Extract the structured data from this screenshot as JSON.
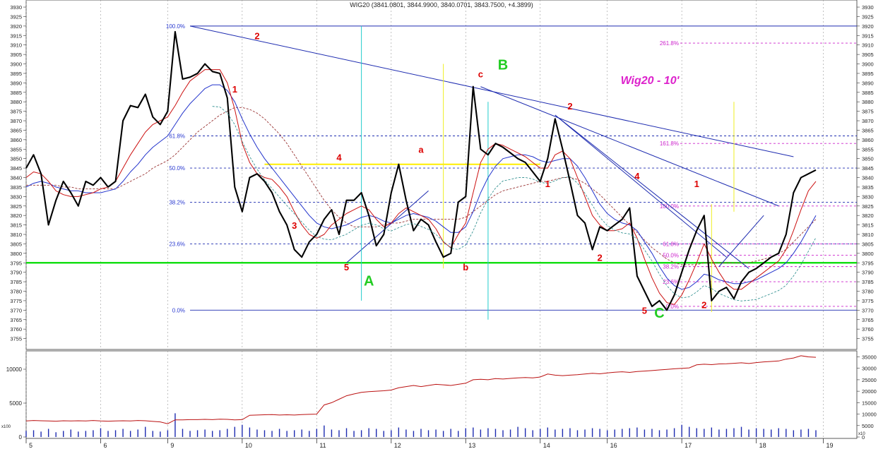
{
  "title": "WIG20 (3841.0801, 3844.9900, 3840.0701, 3843.7500, +4.3899)",
  "annotation_title": "Wig20 - 10'",
  "chart_data": [
    {
      "type": "line",
      "name": "price_panel",
      "title": "WIG20 (3841.0801, 3844.9900, 3840.0701, 3843.7500, +4.3899)",
      "x_tick_labels": [
        "5",
        "6",
        "9",
        "10",
        "11",
        "12",
        "13",
        "14",
        "16",
        "17",
        "18",
        "19"
      ],
      "y_ticks": [
        3755,
        3760,
        3765,
        3770,
        3775,
        3780,
        3785,
        3790,
        3795,
        3800,
        3805,
        3810,
        3815,
        3820,
        3825,
        3830,
        3835,
        3840,
        3845,
        3850,
        3855,
        3860,
        3865,
        3870,
        3875,
        3880,
        3885,
        3890,
        3895,
        3900,
        3905,
        3910,
        3915,
        3920,
        3925,
        3930
      ],
      "ylim": [
        3750,
        3933
      ],
      "x_index": [
        0,
        0.1,
        0.2,
        0.3,
        0.4,
        0.5,
        0.6,
        0.7,
        0.8,
        0.9,
        1,
        1.1,
        1.2,
        1.3,
        1.4,
        1.5,
        1.6,
        1.7,
        1.8,
        1.9,
        2,
        2.1,
        2.2,
        2.3,
        2.4,
        2.5,
        2.6,
        2.7,
        2.8,
        2.9,
        3,
        3.1,
        3.2,
        3.3,
        3.4,
        3.5,
        3.6,
        3.7,
        3.8,
        3.9,
        4,
        4.1,
        4.2,
        4.3,
        4.4,
        4.5,
        4.6,
        4.7,
        4.8,
        4.9,
        5,
        5.1,
        5.2,
        5.3,
        5.4,
        5.5,
        5.6,
        5.7,
        5.8,
        5.9,
        6,
        6.1,
        6.2,
        6.3,
        6.4,
        6.5,
        6.6,
        6.7,
        6.8,
        6.9,
        7,
        7.1,
        7.2,
        7.3,
        7.4,
        7.5,
        7.6,
        7.7,
        7.8,
        7.9,
        8,
        8.1,
        8.2,
        8.3,
        8.4,
        8.5,
        8.6,
        8.7,
        8.8,
        8.9,
        9,
        9.1,
        9.2,
        9.3,
        9.4,
        9.5,
        9.6,
        9.7,
        9.8,
        9.9,
        10,
        10.1,
        10.2,
        10.3,
        10.4,
        10.5,
        10.6,
        10.7,
        10.8
      ],
      "series": [
        {
          "name": "WIG20",
          "values": [
            3845,
            3852,
            3842,
            3815,
            3828,
            3838,
            3832,
            3825,
            3838,
            3836,
            3840,
            3835,
            3838,
            3870,
            3878,
            3877,
            3884,
            3872,
            3868,
            3875,
            3917,
            3892,
            3893,
            3895,
            3900,
            3896,
            3895,
            3882,
            3835,
            3822,
            3840,
            3842,
            3838,
            3832,
            3822,
            3815,
            3802,
            3798,
            3806,
            3810,
            3818,
            3823,
            3810,
            3828,
            3828,
            3832,
            3820,
            3804,
            3810,
            3832,
            3847,
            3828,
            3812,
            3818,
            3815,
            3806,
            3798,
            3800,
            3827,
            3830,
            3888,
            3855,
            3852,
            3858,
            3856,
            3853,
            3850,
            3848,
            3843,
            3838,
            3850,
            3871,
            3855,
            3838,
            3820,
            3816,
            3802,
            3814,
            3812,
            3815,
            3818,
            3824,
            3788,
            3780,
            3772,
            3775,
            3770,
            3778,
            3790,
            3802,
            3812,
            3820,
            3775,
            3780,
            3782,
            3776,
            3785,
            3790,
            3792,
            3795,
            3798,
            3800,
            3810,
            3832,
            3840,
            3842,
            3844
          ]
        },
        {
          "name": "MA short",
          "values": [
            3840,
            3843,
            3842,
            3838,
            3833,
            3831,
            3830,
            3830,
            3831,
            3832,
            3834,
            3835,
            3838,
            3845,
            3852,
            3858,
            3864,
            3868,
            3870,
            3872,
            3878,
            3885,
            3891,
            3894,
            3897,
            3897,
            3897,
            3890,
            3876,
            3858,
            3848,
            3842,
            3840,
            3839,
            3835,
            3830,
            3822,
            3815,
            3810,
            3808,
            3810,
            3815,
            3818,
            3821,
            3823,
            3825,
            3823,
            3818,
            3814,
            3816,
            3821,
            3824,
            3822,
            3820,
            3818,
            3813,
            3806,
            3803,
            3810,
            3816,
            3832,
            3848,
            3855,
            3858,
            3857,
            3855,
            3853,
            3851,
            3848,
            3845,
            3845,
            3852,
            3854,
            3850,
            3840,
            3830,
            3820,
            3815,
            3812,
            3812,
            3813,
            3816,
            3808,
            3797,
            3787,
            3779,
            3774,
            3773,
            3778,
            3786,
            3795,
            3805,
            3797,
            3790,
            3784,
            3781,
            3781,
            3784,
            3787,
            3790,
            3793,
            3796,
            3802,
            3812,
            3823,
            3833,
            3838
          ]
        },
        {
          "name": "MA long",
          "values": [
            3835,
            3837,
            3838,
            3837,
            3835,
            3834,
            3833,
            3833,
            3832,
            3832,
            3832,
            3833,
            3834,
            3838,
            3843,
            3847,
            3852,
            3856,
            3859,
            3862,
            3868,
            3874,
            3879,
            3883,
            3887,
            3889,
            3889,
            3886,
            3880,
            3871,
            3863,
            3856,
            3850,
            3845,
            3840,
            3835,
            3830,
            3825,
            3820,
            3816,
            3814,
            3813,
            3814,
            3815,
            3817,
            3819,
            3820,
            3819,
            3817,
            3816,
            3818,
            3820,
            3821,
            3820,
            3819,
            3817,
            3814,
            3811,
            3811,
            3814,
            3822,
            3832,
            3840,
            3846,
            3850,
            3851,
            3852,
            3852,
            3851,
            3849,
            3848,
            3849,
            3850,
            3850,
            3846,
            3840,
            3833,
            3826,
            3821,
            3818,
            3816,
            3815,
            3812,
            3806,
            3800,
            3793,
            3787,
            3783,
            3781,
            3782,
            3785,
            3789,
            3788,
            3786,
            3785,
            3784,
            3784,
            3785,
            3786,
            3788,
            3790,
            3792,
            3795,
            3800,
            3806,
            3813,
            3820
          ]
        },
        {
          "name": "MA dotted",
          "values": [
            3836,
            3836,
            3836,
            3836,
            3836,
            3835,
            3835,
            3834,
            3834,
            3834,
            3834,
            3834,
            3834,
            3836,
            3838,
            3840,
            3842,
            3845,
            3847,
            3849,
            3852,
            3856,
            3860,
            3864,
            3867,
            3870,
            3873,
            3875,
            3877,
            3877,
            3876,
            3874,
            3871,
            3867,
            3863,
            3858,
            3852,
            3846,
            3840,
            3834,
            3828,
            3823,
            3819,
            3816,
            3814,
            3814,
            3814,
            3814,
            3815,
            3816,
            3816,
            3817,
            3818,
            3818,
            3818,
            3818,
            3818,
            3818,
            3818,
            3819,
            3822,
            3825,
            3828,
            3831,
            3833,
            3834,
            3835,
            3836,
            3837,
            3838,
            3838,
            3839,
            3840,
            3840,
            3839,
            3837,
            3834,
            3831,
            3827,
            3823,
            3819,
            3815,
            3811,
            3807,
            3803,
            3800,
            3797,
            3795,
            3794,
            3794,
            3794,
            3795,
            3795,
            3795,
            3795,
            3795,
            3795,
            3795,
            3796,
            3797,
            3798,
            3800,
            3802,
            3806,
            3810,
            3814,
            3818
          ]
        }
      ],
      "fibonacci_retracement": {
        "levels": [
          {
            "label": "100.0%",
            "value": 3920
          },
          {
            "label": "61.8%",
            "value": 3862
          },
          {
            "label": "50.0%",
            "value": 3845
          },
          {
            "label": "38.2%",
            "value": 3827
          },
          {
            "label": "23.6%",
            "value": 3805
          },
          {
            "label": "0.0%",
            "value": 3770
          }
        ]
      },
      "fibonacci_extension": {
        "levels": [
          {
            "label": "261.8%",
            "value": 3911
          },
          {
            "label": "161.8%",
            "value": 3858
          },
          {
            "label": "100.0%",
            "value": 3825
          },
          {
            "label": "61.8%",
            "value": 3805
          },
          {
            "label": "50.0%",
            "value": 3799
          },
          {
            "label": "38.2%",
            "value": 3793
          },
          {
            "label": "23.6%",
            "value": 3785
          },
          {
            "label": "0.0%",
            "value": 3772
          }
        ]
      },
      "horizontal_levels": [
        {
          "name": "support",
          "value": 3795,
          "color": "#00dd00"
        },
        {
          "name": "yellow",
          "value": 3847,
          "color": "#ffee00"
        }
      ],
      "wave_labels": [
        {
          "text": "1",
          "x": 2.8,
          "y": 3885,
          "color": "#dd0000"
        },
        {
          "text": "2",
          "x": 3.1,
          "y": 3913,
          "color": "#dd0000"
        },
        {
          "text": "3",
          "x": 3.6,
          "y": 3813,
          "color": "#dd0000"
        },
        {
          "text": "4",
          "x": 4.2,
          "y": 3849,
          "color": "#dd0000"
        },
        {
          "text": "5",
          "x": 4.3,
          "y": 3791,
          "color": "#dd0000"
        },
        {
          "text": "A",
          "x": 4.6,
          "y": 3783,
          "color": "#22cc22"
        },
        {
          "text": "a",
          "x": 5.3,
          "y": 3853,
          "color": "#dd0000"
        },
        {
          "text": "b",
          "x": 5.9,
          "y": 3791,
          "color": "#dd0000"
        },
        {
          "text": "c",
          "x": 6.1,
          "y": 3893,
          "color": "#dd0000"
        },
        {
          "text": "B",
          "x": 6.4,
          "y": 3897,
          "color": "#22cc22"
        },
        {
          "text": "1",
          "x": 7.0,
          "y": 3835,
          "color": "#dd0000"
        },
        {
          "text": "2",
          "x": 7.3,
          "y": 3876,
          "color": "#dd0000"
        },
        {
          "text": "2",
          "x": 7.7,
          "y": 3796,
          "color": "#dd0000"
        },
        {
          "text": "4",
          "x": 8.2,
          "y": 3839,
          "color": "#dd0000"
        },
        {
          "text": "5",
          "x": 8.3,
          "y": 3768,
          "color": "#dd0000"
        },
        {
          "text": "C",
          "x": 8.5,
          "y": 3766,
          "color": "#22cc22"
        },
        {
          "text": "1",
          "x": 9.0,
          "y": 3835,
          "color": "#dd0000"
        },
        {
          "text": "2",
          "x": 9.1,
          "y": 3771,
          "color": "#dd0000"
        }
      ]
    },
    {
      "type": "bar",
      "name": "volume_panel",
      "y_ticks_left": [
        0,
        5000,
        10000
      ],
      "y_ticks_right": [
        0,
        5000,
        10000,
        15000,
        20000,
        25000,
        30000,
        35000
      ],
      "left_unit_label": "x100",
      "right_unit_label": "x10",
      "values": [
        900,
        1000,
        800,
        1200,
        700,
        900,
        1100,
        800,
        900,
        1000,
        1300,
        900,
        1000,
        1200,
        900,
        1100,
        1500,
        900,
        800,
        1000,
        3500,
        1200,
        900,
        1000,
        1100,
        900,
        1000,
        1200,
        1500,
        1800,
        1400,
        1100,
        1000,
        900,
        1200,
        900,
        1000,
        1100,
        900,
        1200,
        1700,
        1100,
        1000,
        1300,
        900,
        1000,
        1300,
        1200,
        900,
        1000,
        1400,
        1100,
        900,
        1200,
        1000,
        1100,
        900,
        1200,
        900,
        1300,
        1400,
        1100,
        1300,
        1200,
        1000,
        1100,
        1500,
        1300,
        1000,
        1200,
        1400,
        1100,
        1200,
        1300,
        1000,
        1100,
        1300,
        1200,
        1000,
        1100,
        1200,
        1300,
        1400,
        1100,
        1200,
        1000,
        1100,
        1300,
        1800,
        1500,
        1300,
        1200,
        1400,
        1100,
        1200,
        1300,
        1500,
        1100,
        1300,
        1200,
        1100,
        1300,
        1200,
        1000,
        1100,
        1200,
        1000
      ],
      "cumulative_line": [
        7000,
        7200,
        7100,
        7000,
        6900,
        7100,
        7000,
        7100,
        7000,
        7200,
        7000,
        6900,
        7000,
        7100,
        7000,
        7200,
        7100,
        6800,
        6600,
        5800,
        7500,
        7500,
        7600,
        7600,
        7700,
        7600,
        7800,
        7700,
        7500,
        7600,
        9500,
        9600,
        9700,
        9800,
        9600,
        9700,
        9600,
        9800,
        9900,
        10000,
        14000,
        15000,
        16500,
        18000,
        18800,
        19500,
        19800,
        20000,
        20200,
        20500,
        21500,
        22000,
        22500,
        22000,
        22500,
        23000,
        22800,
        22500,
        23000,
        23500,
        25000,
        25200,
        25000,
        25500,
        25300,
        25600,
        25800,
        26000,
        25800,
        26200,
        27500,
        27000,
        26800,
        27000,
        27200,
        27500,
        27800,
        27600,
        28000,
        28300,
        28500,
        28200,
        28600,
        28800,
        29000,
        29300,
        29500,
        29800,
        30000,
        30200,
        31500,
        31800,
        31600,
        31900,
        32000,
        32200,
        32400,
        32100,
        32500,
        32800,
        33000,
        33200,
        34000,
        34500,
        35500,
        35000,
        34800
      ]
    }
  ]
}
